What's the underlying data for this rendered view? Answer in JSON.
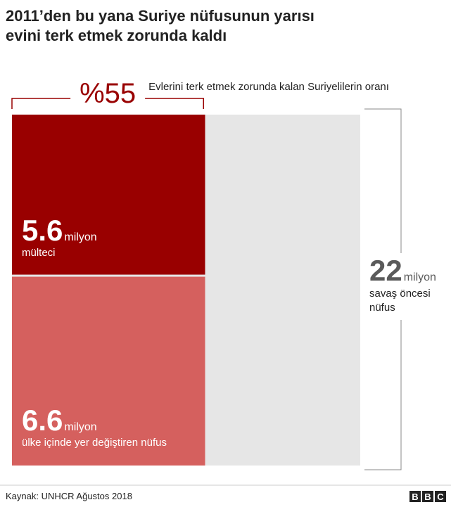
{
  "chart_data": {
    "type": "proportion",
    "title": [
      "2011’den bu yana Suriye nüfusunun yarısı",
      "evini terk etmek zorunda kaldı"
    ],
    "unit": "milyon",
    "total": {
      "value": 22,
      "name": "savaş öncesi nüfus",
      "color": "#e6e6e6"
    },
    "segments": [
      {
        "name": "mülteci",
        "value": 5.6,
        "color": "#990000"
      },
      {
        "name": "ülke içinde yer değiştiren nüfus",
        "value": 6.6,
        "color": "#d5605e"
      }
    ],
    "share": {
      "value": 55,
      "label": "%55",
      "name": "Evlerini terk etmek zorunda kalan Suriyelilerin oranı",
      "color": "#990000"
    },
    "source": "Kaynak: UNHCR Ağustos 2018",
    "logo": "BBC"
  }
}
